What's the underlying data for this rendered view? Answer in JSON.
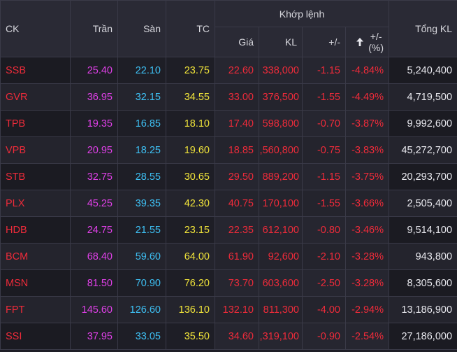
{
  "colors": {
    "ceiling": "#e040e8",
    "floor": "#3ec1f5",
    "reference": "#f2e53a",
    "down": "#ef2b3a",
    "neutral": "#e8e8ee"
  },
  "header": {
    "ck": "CK",
    "tran": "Trần",
    "san": "Sàn",
    "tc": "TC",
    "khop_lenh": "Khớp lệnh",
    "gia": "Giá",
    "kl": "KL",
    "change": "+/-",
    "change_pct_line1": "+/-",
    "change_pct_line2": "(%)",
    "sort_icon": "arrow-up-icon",
    "tong_kl": "Tổng KL"
  },
  "rows": [
    {
      "ck": "SSB",
      "tran": "25.40",
      "san": "22.10",
      "tc": "23.75",
      "gia": "22.60",
      "kl": "338,000",
      "change": "-1.15",
      "change_pct": "-4.84%",
      "tong_kl": "5,240,400",
      "black_symbol": false
    },
    {
      "ck": "GVR",
      "tran": "36.95",
      "san": "32.15",
      "tc": "34.55",
      "gia": "33.00",
      "kl": "376,500",
      "change": "-1.55",
      "change_pct": "-4.49%",
      "tong_kl": "4,719,500",
      "black_symbol": true
    },
    {
      "ck": "TPB",
      "tran": "19.35",
      "san": "16.85",
      "tc": "18.10",
      "gia": "17.40",
      "kl": "598,800",
      "change": "-0.70",
      "change_pct": "-3.87%",
      "tong_kl": "9,992,600",
      "black_symbol": false
    },
    {
      "ck": "VPB",
      "tran": "20.95",
      "san": "18.25",
      "tc": "19.60",
      "gia": "18.85",
      "kl": ",560,800",
      "change": "-0.75",
      "change_pct": "-3.83%",
      "tong_kl": "45,272,700",
      "black_symbol": true
    },
    {
      "ck": "STB",
      "tran": "32.75",
      "san": "28.55",
      "tc": "30.65",
      "gia": "29.50",
      "kl": "889,200",
      "change": "-1.15",
      "change_pct": "-3.75%",
      "tong_kl": "20,293,700",
      "black_symbol": false
    },
    {
      "ck": "PLX",
      "tran": "45.25",
      "san": "39.35",
      "tc": "42.30",
      "gia": "40.75",
      "kl": "170,100",
      "change": "-1.55",
      "change_pct": "-3.66%",
      "tong_kl": "2,505,400",
      "black_symbol": true
    },
    {
      "ck": "HDB",
      "tran": "24.75",
      "san": "21.55",
      "tc": "23.15",
      "gia": "22.35",
      "kl": "612,100",
      "change": "-0.80",
      "change_pct": "-3.46%",
      "tong_kl": "9,514,100",
      "black_symbol": false
    },
    {
      "ck": "BCM",
      "tran": "68.40",
      "san": "59.60",
      "tc": "64.00",
      "gia": "61.90",
      "kl": "92,600",
      "change": "-2.10",
      "change_pct": "-3.28%",
      "tong_kl": "943,800",
      "black_symbol": true
    },
    {
      "ck": "MSN",
      "tran": "81.50",
      "san": "70.90",
      "tc": "76.20",
      "gia": "73.70",
      "kl": "603,600",
      "change": "-2.50",
      "change_pct": "-3.28%",
      "tong_kl": "8,305,600",
      "black_symbol": false
    },
    {
      "ck": "FPT",
      "tran": "145.60",
      "san": "126.60",
      "tc": "136.10",
      "gia": "132.10",
      "kl": "811,300",
      "change": "-4.00",
      "change_pct": "-2.94%",
      "tong_kl": "13,186,900",
      "black_symbol": true
    },
    {
      "ck": "SSI",
      "tran": "37.95",
      "san": "33.05",
      "tc": "35.50",
      "gia": "34.60",
      "kl": ",319,100",
      "change": "-0.90",
      "change_pct": "-2.54%",
      "tong_kl": "27,186,000",
      "black_symbol": false
    }
  ]
}
